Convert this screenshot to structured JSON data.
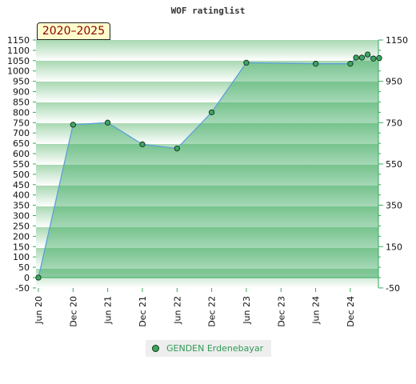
{
  "chart_data": {
    "type": "area",
    "title": "WOF ratinglist",
    "period_label": "2020–2025",
    "x_tick_labels": [
      "Jun 20",
      "Dec 20",
      "Jun 21",
      "Dec 21",
      "Jun 22",
      "Dec 22",
      "Jun 23",
      "Dec 23",
      "Jun 24",
      "Dec 24"
    ],
    "x_ticks": [
      "2020-06",
      "2020-12",
      "2021-06",
      "2021-12",
      "2022-06",
      "2022-12",
      "2023-06",
      "2023-12",
      "2024-06",
      "2024-12"
    ],
    "xlim": [
      "2020-06",
      "2025-05"
    ],
    "ylim_left": [
      -50,
      1150
    ],
    "y_ticks_left": [
      -50,
      0,
      50,
      100,
      150,
      200,
      250,
      300,
      350,
      400,
      450,
      500,
      550,
      600,
      650,
      700,
      750,
      800,
      850,
      900,
      950,
      1000,
      1050,
      1100,
      1150
    ],
    "y_ticks_right": [
      -50,
      150,
      350,
      550,
      750,
      950,
      1150
    ],
    "series": [
      {
        "name": "GENDEN Erdenebayar",
        "color": "#3aa860",
        "points": [
          {
            "x": "2020-06",
            "y": 0
          },
          {
            "x": "2020-12",
            "y": 740
          },
          {
            "x": "2021-06",
            "y": 750
          },
          {
            "x": "2021-12",
            "y": 645
          },
          {
            "x": "2022-06",
            "y": 625
          },
          {
            "x": "2022-12",
            "y": 800
          },
          {
            "x": "2023-06",
            "y": 1040
          },
          {
            "x": "2024-06",
            "y": 1035
          },
          {
            "x": "2024-12",
            "y": 1035
          },
          {
            "x": "2025-01",
            "y": 1065
          },
          {
            "x": "2025-02",
            "y": 1065
          },
          {
            "x": "2025-03",
            "y": 1080
          },
          {
            "x": "2025-04",
            "y": 1060
          },
          {
            "x": "2025-05",
            "y": 1063
          }
        ]
      }
    ],
    "legend_position": "bottom-center",
    "grid": false
  }
}
